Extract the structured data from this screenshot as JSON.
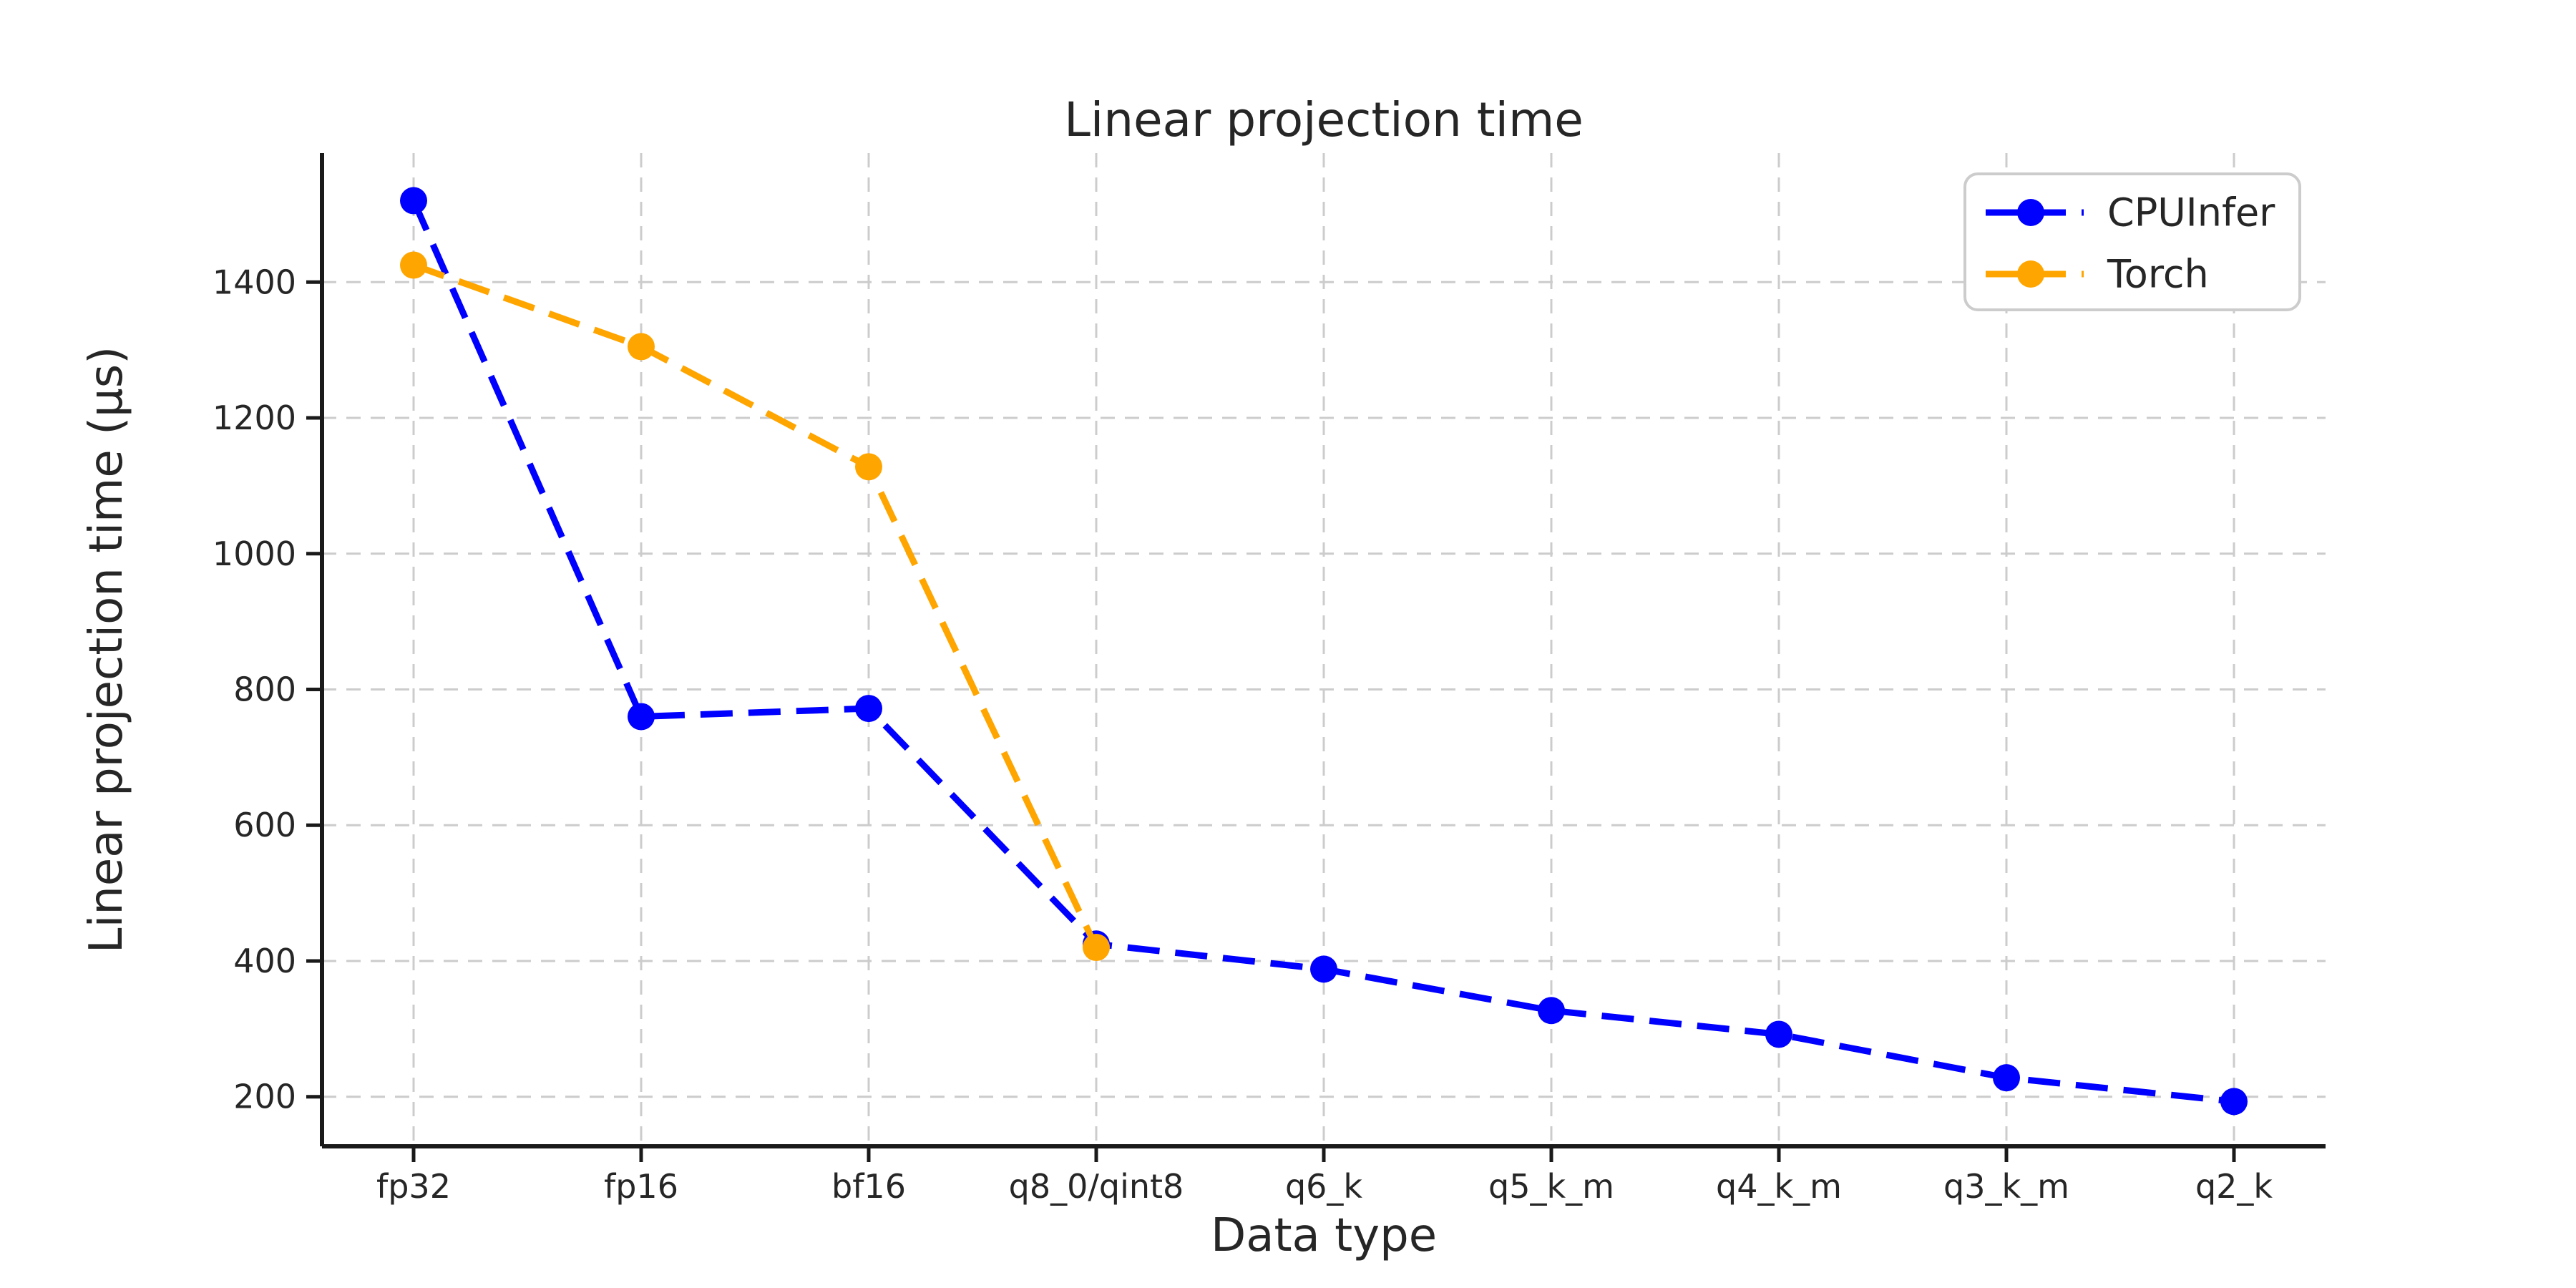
{
  "chart_data": {
    "type": "line",
    "title": "Linear projection time",
    "xlabel": "Data type",
    "ylabel": "Linear projection time (μs)",
    "categories": [
      "fp32",
      "fp16",
      "bf16",
      "q8_0/qint8",
      "q6_k",
      "q5_k_m",
      "q4_k_m",
      "q3_k_m",
      "q2_k"
    ],
    "series": [
      {
        "name": "CPUInfer",
        "color": "#0000ff",
        "values": [
          1520,
          760,
          772,
          425,
          388,
          327,
          292,
          228,
          193
        ]
      },
      {
        "name": "Torch",
        "color": "#ffa500",
        "values": [
          1425,
          1305,
          1128,
          420,
          null,
          null,
          null,
          null,
          null
        ]
      }
    ],
    "yticks": [
      200,
      400,
      600,
      800,
      1000,
      1200,
      1400
    ],
    "ylim": [
      127,
      1590
    ],
    "grid": true,
    "grid_style": "dashed",
    "line_style": "dashed",
    "marker": "circle",
    "legend_position": "upper right",
    "colors": {
      "grid": "#cccccc",
      "spine": "#1a1a1a",
      "text": "#262626",
      "legend_border": "#cccccc",
      "background": "#ffffff"
    }
  }
}
